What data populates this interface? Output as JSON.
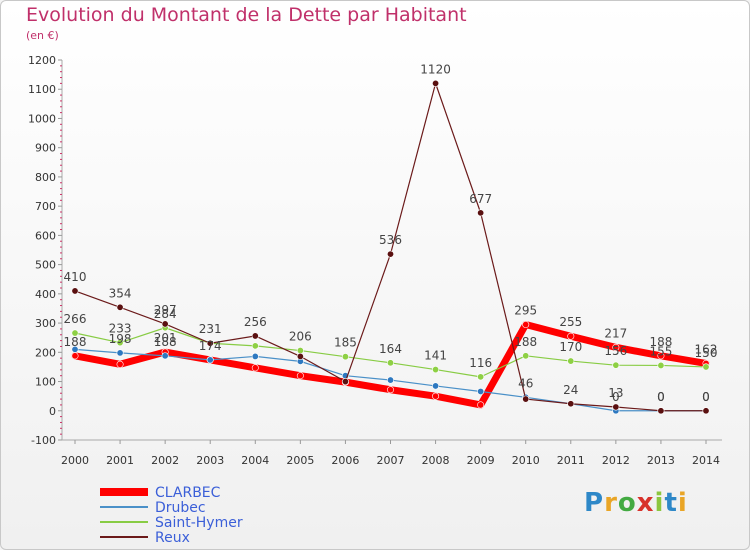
{
  "title": "Evolution du Montant de la Dette par Habitant",
  "subtitle": "(en €)",
  "logo": "Proxiti",
  "chart_data": {
    "type": "line",
    "title": "Evolution du Montant de la Dette par Habitant",
    "subtitle": "(en €)",
    "xlabel": "",
    "ylabel": "",
    "ylim": [
      -100,
      1200
    ],
    "yticks": [
      -100,
      0,
      100,
      200,
      300,
      400,
      500,
      600,
      700,
      800,
      900,
      1000,
      1100,
      1200
    ],
    "grid": false,
    "legend": "bottom-left",
    "categories": [
      "2000",
      "2001",
      "2002",
      "2003",
      "2004",
      "2005",
      "2006",
      "2007",
      "2008",
      "2009",
      "2010",
      "2011",
      "2012",
      "2013",
      "2014"
    ],
    "series": [
      {
        "name": "CLARBEC",
        "color": "#ff0000",
        "values": [
          188,
          159,
          201,
          174,
          147,
          120,
          98,
          72,
          50,
          20,
          295,
          255,
          217,
          188,
          162
        ],
        "labels": [
          "188",
          "",
          "201",
          "",
          "",
          "",
          "",
          "",
          "",
          "",
          "295",
          "255",
          "217",
          "188",
          "162"
        ]
      },
      {
        "name": "Drubec",
        "color": "#4a90c8",
        "values": [
          210,
          198,
          188,
          174,
          186,
          169,
          120,
          105,
          85,
          66,
          46,
          24,
          0,
          0,
          0
        ],
        "labels": [
          "",
          "198",
          "188",
          "174",
          "",
          "",
          "",
          "",
          "",
          "",
          "46",
          "24",
          "0",
          "0",
          "0"
        ]
      },
      {
        "name": "Saint-Hymer",
        "color": "#88cc44",
        "values": [
          266,
          233,
          284,
          231,
          222,
          206,
          185,
          164,
          141,
          116,
          188,
          170,
          156,
          155,
          150
        ],
        "labels": [
          "266",
          "233",
          "284",
          "231",
          "",
          "206",
          "185",
          "164",
          "141",
          "116",
          "188",
          "170",
          "156",
          "155",
          "150"
        ]
      },
      {
        "name": "Reux",
        "color": "#6b1a1a",
        "values": [
          410,
          354,
          297,
          231,
          256,
          186,
          100,
          536,
          1120,
          677,
          40,
          24,
          13,
          0,
          0
        ],
        "labels": [
          "410",
          "354",
          "297",
          "",
          "256",
          "",
          "",
          "536",
          "1120",
          "677",
          "",
          "",
          "13",
          "0",
          "0"
        ]
      }
    ]
  }
}
